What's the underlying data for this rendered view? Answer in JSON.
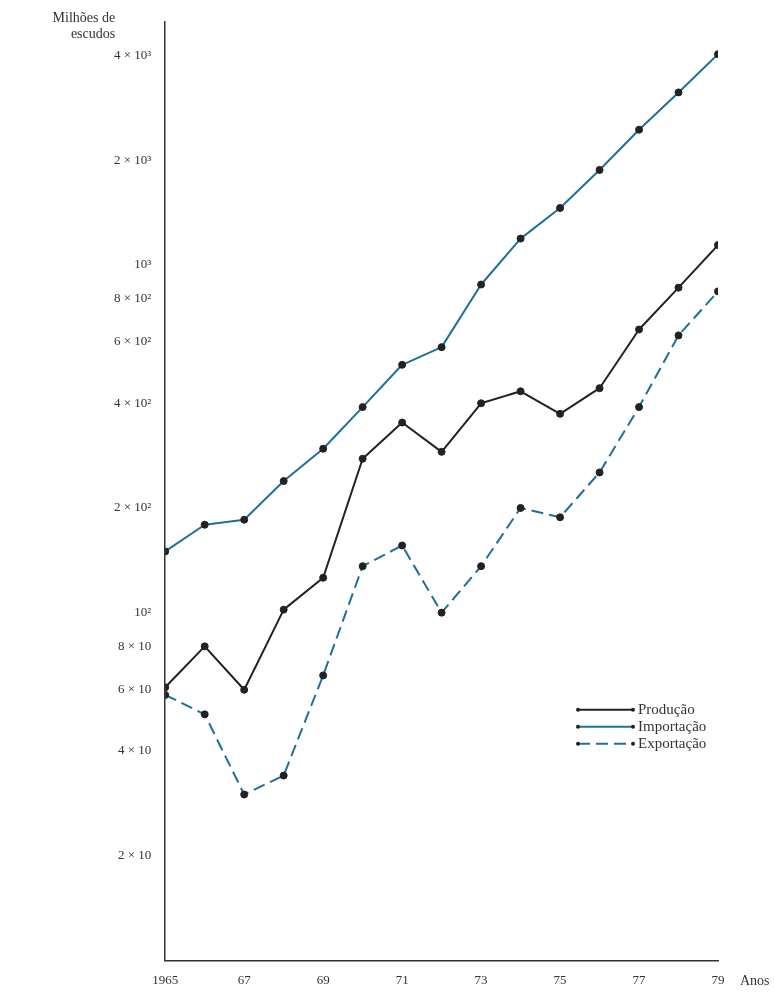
{
  "chart_data": {
    "type": "line",
    "xlabel": "Anos",
    "ylabel": "Milhões de escudos",
    "log": "y",
    "grid": false,
    "legend": "right",
    "marker": "circle",
    "x": [
      1965,
      1966,
      1967,
      1968,
      1969,
      1970,
      1971,
      1972,
      1973,
      1974,
      1975,
      1976,
      1977,
      1978,
      1979
    ],
    "xlim": [
      1965,
      1979
    ],
    "xticks": [
      {
        "value": 1965,
        "label": "1965"
      },
      {
        "value": 1967,
        "label": "67"
      },
      {
        "value": 1969,
        "label": "69"
      },
      {
        "value": 1971,
        "label": "71"
      },
      {
        "value": 1973,
        "label": "73"
      },
      {
        "value": 1975,
        "label": "75"
      },
      {
        "value": 1977,
        "label": "77"
      },
      {
        "value": 1979,
        "label": "79"
      }
    ],
    "ylim": [
      10,
      5000
    ],
    "yticks": [
      {
        "value": 20,
        "label": "2 × 10"
      },
      {
        "value": 40,
        "label": "4 × 10"
      },
      {
        "value": 60,
        "label": "6 × 10"
      },
      {
        "value": 80,
        "label": "8 × 10"
      },
      {
        "value": 100,
        "label": "10²"
      },
      {
        "value": 200,
        "label": "2 × 10²"
      },
      {
        "value": 400,
        "label": "4 × 10²"
      },
      {
        "value": 600,
        "label": "6 × 10²"
      },
      {
        "value": 800,
        "label": "8 × 10²"
      },
      {
        "value": 1000,
        "label": "10³"
      },
      {
        "value": 2000,
        "label": "2 × 10³"
      },
      {
        "value": 4000,
        "label": "4 × 10³"
      }
    ],
    "series": [
      {
        "name": "Produção",
        "color": "#222222",
        "line_style": "solid",
        "values": [
          61,
          80,
          60,
          102,
          126,
          277,
          352,
          290,
          400,
          433,
          373,
          442,
          652,
          860,
          1140
        ]
      },
      {
        "name": "Importação",
        "color": "#1f6f9a",
        "line_style": "solid",
        "values": [
          150,
          179,
          185,
          239,
          296,
          390,
          516,
          580,
          878,
          1190,
          1457,
          1875,
          2447,
          3133,
          4035
        ]
      },
      {
        "name": "Exportação",
        "color": "#1f6f9a",
        "line_style": "dashed",
        "values": [
          58,
          51,
          30,
          34,
          66,
          136,
          156,
          100,
          136,
          200,
          188,
          253,
          390,
          627,
          839
        ]
      }
    ]
  }
}
